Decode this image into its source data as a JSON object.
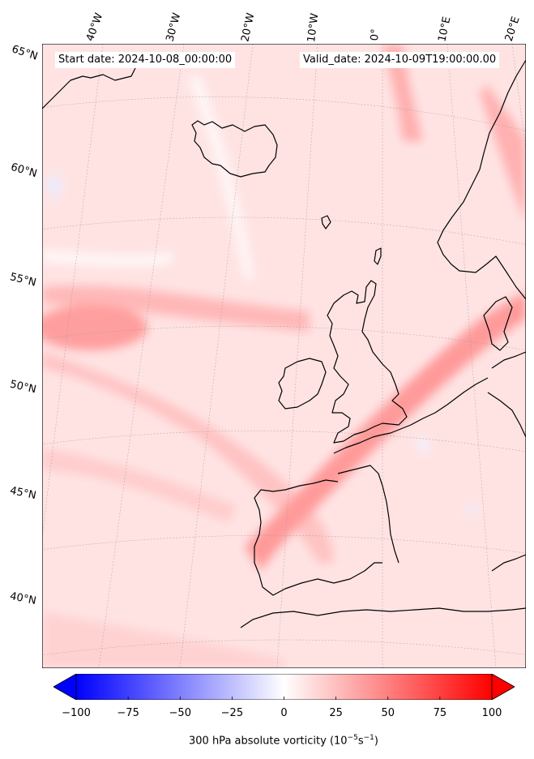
{
  "map": {
    "start_label": "Start date: 2024-10-08_00:00:00",
    "valid_label": "Valid_date: 2024-10-09T19:00:00.00",
    "lon_labels": [
      "40°W",
      "30°W",
      "20°W",
      "10°W",
      "0°",
      "10°E",
      "20°E"
    ],
    "lat_labels": [
      "65°N",
      "60°N",
      "55°N",
      "50°N",
      "45°N",
      "40°N"
    ],
    "landmasses": [
      "Iceland",
      "Faroe Islands",
      "Shetland",
      "Great Britain",
      "Ireland",
      "Norway",
      "Denmark",
      "France",
      "Iberian Peninsula",
      "North Africa",
      "Greenland"
    ]
  },
  "colorbar": {
    "label_prefix": "300 hPa absolute vorticity (10",
    "label_exp1": "−5",
    "label_mid": "s",
    "label_exp2": "−1",
    "label_suffix": ")",
    "ticks": [
      "−100",
      "−75",
      "−50",
      "−25",
      "0",
      "25",
      "50",
      "75",
      "100"
    ],
    "min": -100,
    "max": 100,
    "colormap": "bwr",
    "color_low": "#0000ff",
    "color_mid": "#ffffff",
    "color_high": "#ff0000"
  }
}
